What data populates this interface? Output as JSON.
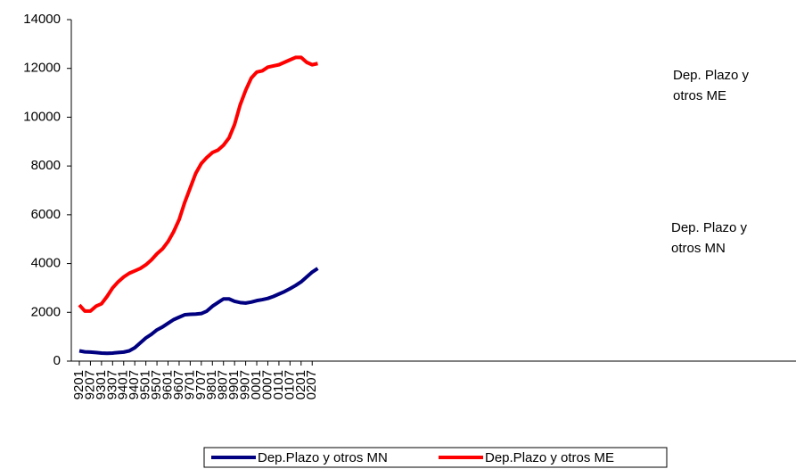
{
  "chart_data": {
    "type": "line",
    "categories": [
      "9201",
      null,
      "9207",
      null,
      "9301",
      null,
      "9307",
      null,
      "9401",
      null,
      "9407",
      null,
      "9501",
      null,
      "9507",
      null,
      "9601",
      null,
      "9607",
      null,
      "9701",
      null,
      "9707",
      null,
      "9801",
      null,
      "9807",
      null,
      "9901",
      null,
      "9907",
      null,
      "0001",
      null,
      "0007",
      null,
      "0101",
      null,
      "0107",
      null,
      "0201",
      null,
      "0207",
      null
    ],
    "series": [
      {
        "name": "Dep.Plazo y otros MN",
        "color": "#000080",
        "values": [
          420,
          380,
          370,
          350,
          330,
          320,
          330,
          350,
          370,
          420,
          550,
          750,
          950,
          1100,
          1280,
          1400,
          1550,
          1700,
          1800,
          1900,
          1920,
          1930,
          1950,
          2050,
          2250,
          2400,
          2550,
          2550,
          2450,
          2400,
          2380,
          2420,
          2480,
          2520,
          2570,
          2650,
          2750,
          2850,
          2970,
          3100,
          3250,
          3450,
          3650,
          3800
        ]
      },
      {
        "name": "Dep.Plazo y otros ME",
        "color": "#ff0000",
        "values": [
          2300,
          2050,
          2050,
          2250,
          2350,
          2650,
          3000,
          3250,
          3450,
          3600,
          3700,
          3800,
          3950,
          4150,
          4400,
          4600,
          4900,
          5300,
          5800,
          6500,
          7100,
          7700,
          8100,
          8350,
          8550,
          8650,
          8850,
          9150,
          9700,
          10500,
          11100,
          11600,
          11850,
          11900,
          12050,
          12100,
          12150,
          12250,
          12350,
          12450,
          12450,
          12250,
          12150,
          12200
        ]
      }
    ],
    "ylim": [
      0,
      14000
    ],
    "yticks": [
      0,
      2000,
      4000,
      6000,
      8000,
      10000,
      12000,
      14000
    ],
    "annotations": [
      [
        "Dep. Plazo y",
        "otros  ME"
      ],
      [
        "Dep. Plazo y",
        "otros  MN"
      ]
    ]
  }
}
